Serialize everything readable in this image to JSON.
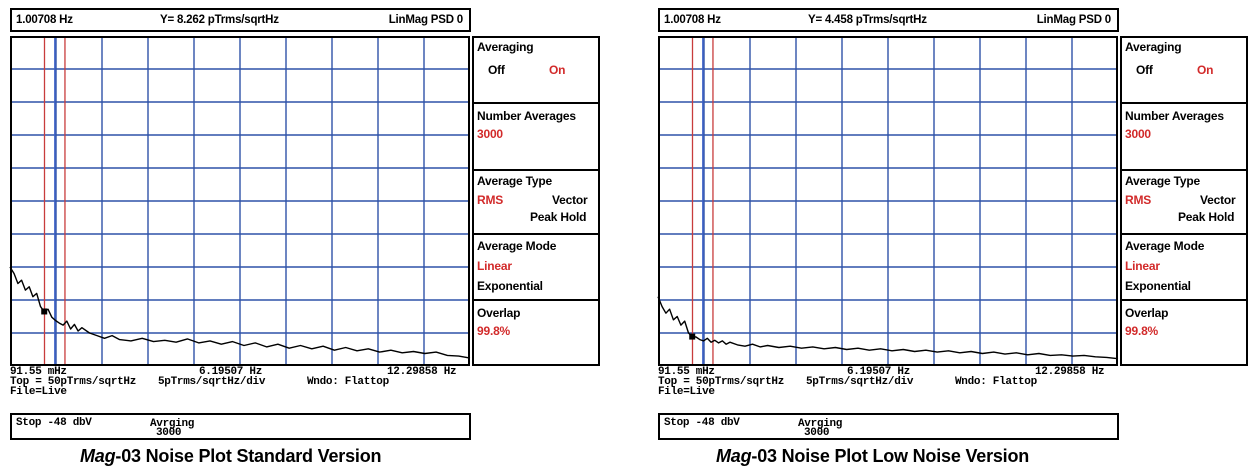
{
  "panels": [
    {
      "header": {
        "frequency": "1.00708 Hz",
        "value": "Y= 8.262 pTrms/sqrtHz",
        "mode": "LinMag PSD 0"
      },
      "menu": {
        "averaging": {
          "title": "Averaging",
          "off": "Off",
          "on": "On"
        },
        "number_averages": {
          "title": "Number Averages",
          "value": "3000"
        },
        "average_type": {
          "title": "Average Type",
          "rms": "RMS",
          "vector": "Vector",
          "peak_hold": "Peak Hold"
        },
        "average_mode": {
          "title": "Average Mode",
          "linear": "Linear",
          "exponential": "Exponential"
        },
        "overlap": {
          "title": "Overlap",
          "value": "99.8%"
        }
      },
      "info": {
        "x_start": "91.55 mHz",
        "x_mid": "6.19507 Hz",
        "x_end": "12.29858 Hz",
        "top": "Top = 50pTrms/sqrtHz",
        "scale": "5pTrms/sqrtHz/div",
        "window": "Wndo: Flattop",
        "file": "File=Live"
      },
      "status": {
        "stop": "Stop  -48 dbV",
        "avg_label": "Avrging",
        "avg_value": "3000"
      },
      "caption": {
        "brand": "Mag",
        "text": "-03 Noise Plot Standard Version"
      }
    },
    {
      "header": {
        "frequency": "1.00708 Hz",
        "value": "Y= 4.458 pTrms/sqrtHz",
        "mode": "LinMag PSD 0"
      },
      "menu": {
        "averaging": {
          "title": "Averaging",
          "off": "Off",
          "on": "On"
        },
        "number_averages": {
          "title": "Number Averages",
          "value": "3000"
        },
        "average_type": {
          "title": "Average Type",
          "rms": "RMS",
          "vector": "Vector",
          "peak_hold": "Peak Hold"
        },
        "average_mode": {
          "title": "Average Mode",
          "linear": "Linear",
          "exponential": "Exponential"
        },
        "overlap": {
          "title": "Overlap",
          "value": "99.8%"
        }
      },
      "info": {
        "x_start": "91.55 mHz",
        "x_mid": "6.19507 Hz",
        "x_end": "12.29858 Hz",
        "top": "Top = 50pTrms/sqrtHz",
        "scale": "5pTrms/sqrtHz/div",
        "window": "Wndo: Flattop",
        "file": "File=Live"
      },
      "status": {
        "stop": "Stop  -48 dbV",
        "avg_label": "Avrging",
        "avg_value": "3000"
      },
      "caption": {
        "brand": "Mag",
        "text": "-03 Noise Plot Low Noise Version"
      }
    }
  ],
  "colors": {
    "grid": "#2f52a8",
    "trace": "#000000",
    "marker_red": "#c83c3c",
    "marker_blue": "#3a5fc8",
    "accent_red": "#d22a2a"
  },
  "chart_data": [
    {
      "type": "line",
      "title": "",
      "xlabel": "",
      "ylabel": "",
      "xlim": [
        0.09155,
        12.29858
      ],
      "ylim": [
        0,
        50
      ],
      "grid": true,
      "cursor_x": 1.00708,
      "marker_lines_x": [
        1.00708,
        1.28,
        1.55
      ],
      "series": [
        {
          "x": [
            0.09155,
            0.2,
            0.3,
            0.4,
            0.5,
            0.6,
            0.7,
            0.8,
            0.9,
            1.0,
            1.1,
            1.2,
            1.3,
            1.4,
            1.5,
            1.6,
            1.7,
            1.8,
            1.9,
            2.0,
            2.2,
            2.4,
            2.6,
            2.8,
            3.0,
            3.3,
            3.6,
            3.9,
            4.2,
            4.5,
            4.8,
            5.1,
            5.4,
            5.7,
            6.0,
            6.3,
            6.6,
            6.9,
            7.2,
            7.5,
            7.8,
            8.1,
            8.4,
            8.7,
            9.0,
            9.3,
            9.6,
            9.9,
            10.2,
            10.5,
            10.8,
            11.1,
            11.4,
            11.7,
            12.0,
            12.29858
          ],
          "values": [
            15.0,
            14.0,
            12.5,
            13.0,
            11.5,
            12.0,
            10.5,
            11.0,
            9.0,
            8.262,
            8.6,
            7.4,
            6.9,
            6.5,
            6.2,
            6.8,
            5.6,
            6.3,
            5.3,
            5.8,
            5.0,
            4.6,
            4.2,
            4.6,
            4.0,
            3.8,
            4.2,
            3.7,
            3.9,
            3.6,
            4.1,
            3.5,
            3.8,
            3.3,
            3.7,
            3.1,
            3.5,
            2.9,
            3.3,
            2.7,
            3.1,
            2.6,
            3.0,
            2.4,
            2.8,
            2.3,
            2.6,
            2.1,
            2.4,
            2.0,
            2.2,
            1.9,
            2.1,
            1.6,
            1.5,
            1.2
          ]
        }
      ]
    },
    {
      "type": "line",
      "title": "",
      "xlabel": "",
      "ylabel": "",
      "xlim": [
        0.09155,
        12.29858
      ],
      "ylim": [
        0,
        50
      ],
      "grid": true,
      "cursor_x": 1.00708,
      "marker_lines_x": [
        1.00708,
        1.28,
        1.55
      ],
      "series": [
        {
          "x": [
            0.09155,
            0.2,
            0.3,
            0.4,
            0.5,
            0.6,
            0.7,
            0.8,
            0.9,
            1.0,
            1.1,
            1.2,
            1.3,
            1.4,
            1.5,
            1.6,
            1.7,
            1.8,
            1.9,
            2.0,
            2.2,
            2.4,
            2.6,
            2.8,
            3.0,
            3.3,
            3.6,
            3.9,
            4.2,
            4.5,
            4.8,
            5.1,
            5.4,
            5.7,
            6.0,
            6.3,
            6.6,
            6.9,
            7.2,
            7.5,
            7.8,
            8.1,
            8.4,
            8.7,
            9.0,
            9.3,
            9.6,
            9.9,
            10.2,
            10.5,
            10.8,
            11.1,
            11.4,
            11.7,
            12.0,
            12.29858
          ],
          "values": [
            10.5,
            9.0,
            8.0,
            8.6,
            7.0,
            7.5,
            6.2,
            6.8,
            5.0,
            4.458,
            4.4,
            4.0,
            3.8,
            4.2,
            3.6,
            3.9,
            3.5,
            3.8,
            3.3,
            3.6,
            3.2,
            3.0,
            3.3,
            2.9,
            3.1,
            2.8,
            3.0,
            2.7,
            2.9,
            2.6,
            2.8,
            2.5,
            2.7,
            2.4,
            2.6,
            2.3,
            2.5,
            2.2,
            2.4,
            2.1,
            2.3,
            2.0,
            2.2,
            1.9,
            2.1,
            1.8,
            2.0,
            1.7,
            1.9,
            1.6,
            1.7,
            1.5,
            1.6,
            1.4,
            1.3,
            1.1
          ]
        }
      ]
    }
  ]
}
